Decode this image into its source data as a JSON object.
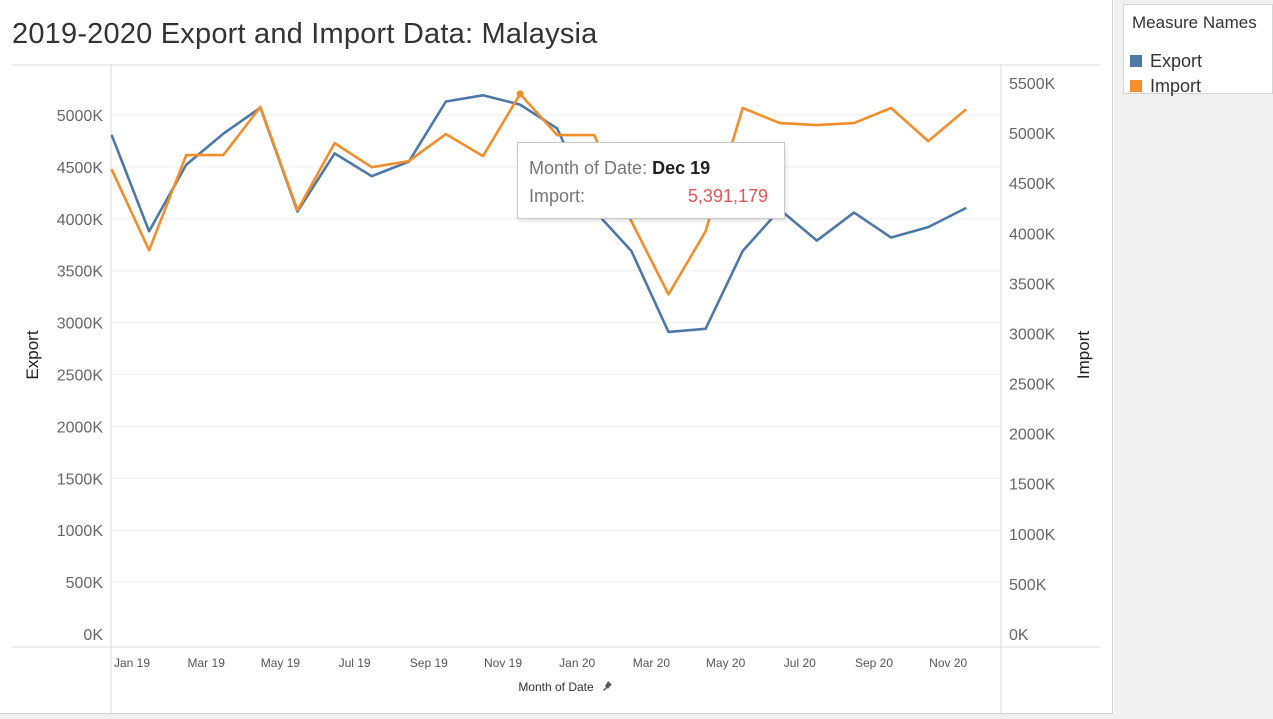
{
  "title": "2019-2020 Export and Import Data: Malaysia",
  "legend": {
    "title": "Measure Names",
    "items": [
      {
        "label": "Export",
        "color": "#4e79a7"
      },
      {
        "label": "Import",
        "color": "#f28e2b"
      }
    ]
  },
  "tooltip": {
    "month_label": "Month of Date:",
    "month_value": "Dec 19",
    "measure_label": "Import:",
    "measure_value": "5,391,179"
  },
  "chart_data": {
    "type": "line",
    "title": "2019-2020 Export and Import Data: Malaysia",
    "xlabel": "Month of Date",
    "ylabel_left": "Export",
    "ylabel_right": "Import",
    "x": [
      "Jan 19",
      "Feb 19",
      "Mar 19",
      "Apr 19",
      "May 19",
      "Jun 19",
      "Jul 19",
      "Aug 19",
      "Sep 19",
      "Oct 19",
      "Nov 19",
      "Dec 19",
      "Jan 20",
      "Feb 20",
      "Mar 20",
      "Apr 20",
      "May 20",
      "Jun 20",
      "Jul 20",
      "Aug 20",
      "Sep 20",
      "Oct 20",
      "Nov 20",
      "Dec 20"
    ],
    "x_tick_labels": [
      "Jan 19",
      "Mar 19",
      "May 19",
      "Jul 19",
      "Sep 19",
      "Nov 19",
      "Jan 20",
      "Mar 20",
      "May 20",
      "Jul 20",
      "Sep 20",
      "Nov 20"
    ],
    "series": [
      {
        "name": "Export",
        "axis": "left",
        "color": "#4e79a7",
        "values": [
          4800000,
          3880000,
          4520000,
          4820000,
          5070000,
          4070000,
          4630000,
          4410000,
          4550000,
          5130000,
          5190000,
          5100000,
          4870000,
          4080000,
          3690000,
          2910000,
          2940000,
          3690000,
          4090000,
          3790000,
          4060000,
          3820000,
          3920000,
          4100000
        ]
      },
      {
        "name": "Import",
        "axis": "right",
        "color": "#f28e2b",
        "values": [
          4630000,
          3830000,
          4780000,
          4780000,
          5260000,
          4230000,
          4900000,
          4660000,
          4720000,
          4990000,
          4770000,
          5391179,
          4980000,
          4980000,
          4120000,
          3390000,
          4020000,
          5250000,
          5100000,
          5080000,
          5100000,
          5250000,
          4920000,
          5230000
        ]
      }
    ],
    "y_left": {
      "min": 0,
      "max": 5500000,
      "ticks": [
        0,
        500000,
        1000000,
        1500000,
        2000000,
        2500000,
        3000000,
        3500000,
        4000000,
        4500000,
        5000000
      ],
      "tick_labels": [
        "0K",
        "500K",
        "1000K",
        "1500K",
        "2000K",
        "2500K",
        "3000K",
        "3500K",
        "4000K",
        "4500K",
        "5000K"
      ]
    },
    "y_right": {
      "min": 0,
      "max": 5500000,
      "ticks": [
        0,
        500000,
        1000000,
        1500000,
        2000000,
        2500000,
        3000000,
        3500000,
        4000000,
        4500000,
        5000000,
        5500000
      ],
      "tick_labels": [
        "0K",
        "500K",
        "1000K",
        "1500K",
        "2000K",
        "2500K",
        "3000K",
        "3500K",
        "4000K",
        "4500K",
        "5000K",
        "5500K"
      ]
    },
    "grid": true,
    "legend_position": "top-right"
  }
}
